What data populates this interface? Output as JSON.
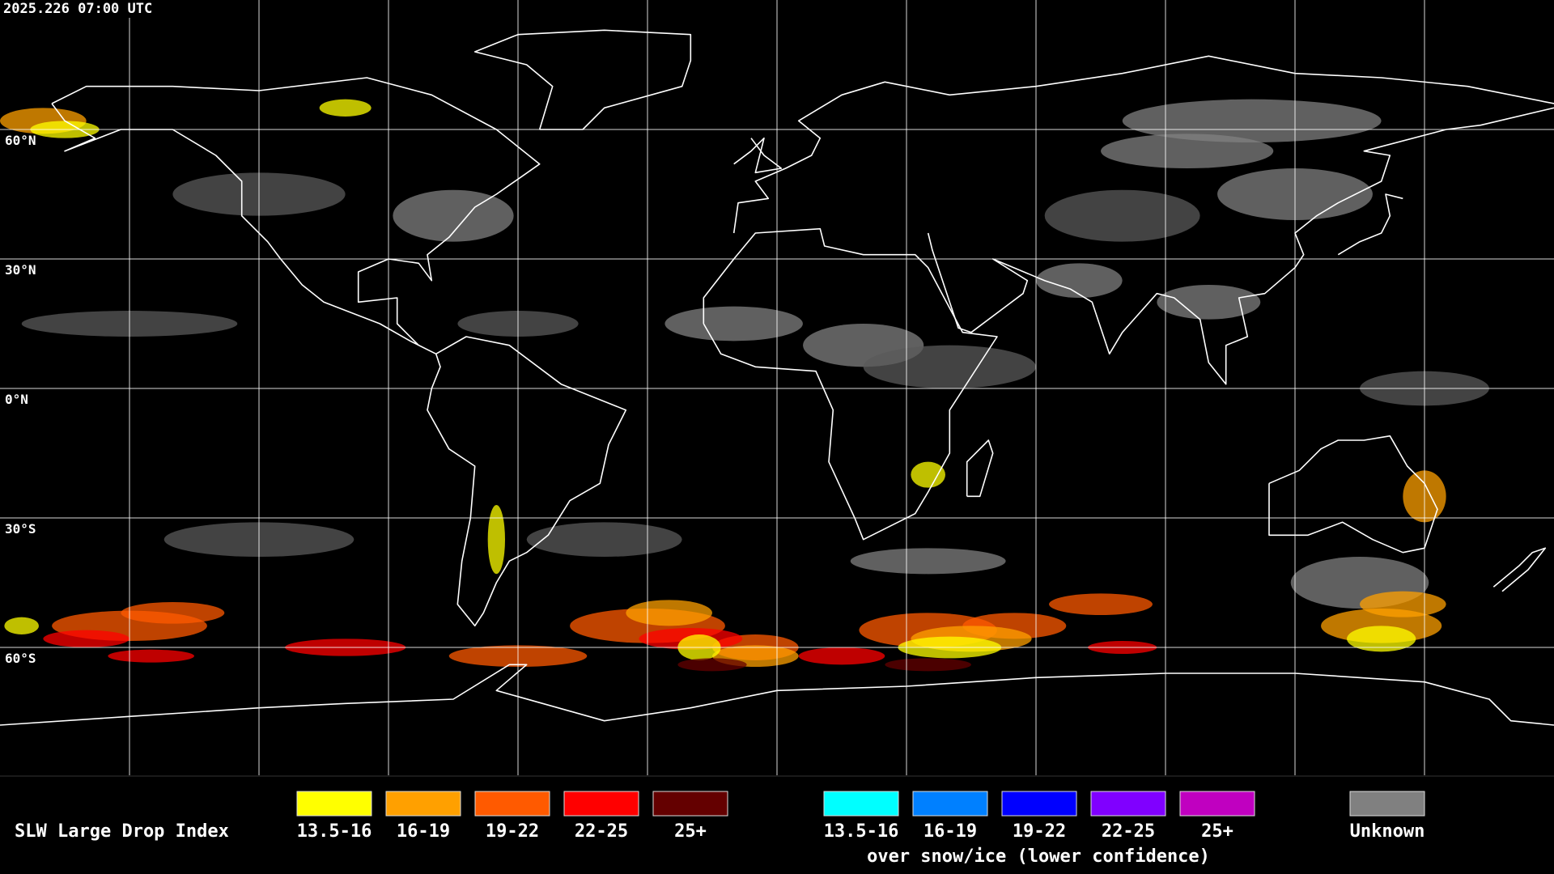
{
  "header": {
    "timestamp": "2025.226 07:00 UTC"
  },
  "map": {
    "latitude_labels": [
      "60°N",
      "30°N",
      "0°N",
      "30°S",
      "60°S"
    ]
  },
  "legend": {
    "title": "SLW Large Drop Index",
    "items": [
      {
        "label": "13.5-16",
        "color": "#ffff00"
      },
      {
        "label": "16-19",
        "color": "#ffa000"
      },
      {
        "label": "19-22",
        "color": "#ff5a00"
      },
      {
        "label": "22-25",
        "color": "#ff0000"
      },
      {
        "label": "25+",
        "color": "#640000"
      }
    ],
    "snow_items": [
      {
        "label": "13.5-16",
        "color": "#00ffff"
      },
      {
        "label": "16-19",
        "color": "#0080ff"
      },
      {
        "label": "19-22",
        "color": "#0000ff"
      },
      {
        "label": "22-25",
        "color": "#8000ff"
      },
      {
        "label": "25+",
        "color": "#c000c0"
      }
    ],
    "snow_caption": "over snow/ice (lower confidence)",
    "unknown": {
      "label": "Unknown",
      "color": "#808080"
    }
  }
}
